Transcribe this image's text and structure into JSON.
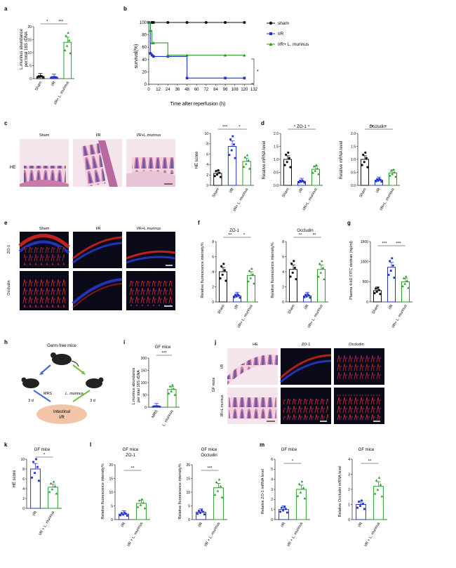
{
  "colors": {
    "sham": "#111111",
    "ir": "#2233cc",
    "lm": "#2a9a2a",
    "he_pink": "#e9a6c2",
    "he_purple": "#7a5fa8",
    "fl_bg": "#0a0a14",
    "fl_red": "#d02020",
    "fl_blue": "#2030b0"
  },
  "panels": {
    "a": "a",
    "b": "b",
    "c": "c",
    "d": "d",
    "e": "e",
    "f": "f",
    "g": "g",
    "h": "h",
    "i": "i",
    "j": "j",
    "k": "k",
    "l": "l",
    "m": "m"
  },
  "sig": {
    "s1": "*",
    "s2": "**",
    "s3": "***"
  },
  "a": {
    "ylabel1": "L.murinus abundance",
    "ylabel2": "per total 16S rDNA",
    "x": [
      "Sham",
      "I/R",
      "I/R+ L. murinus"
    ],
    "ticks": [
      "0",
      "5",
      "10",
      "15",
      "20"
    ],
    "values": [
      0.8,
      0.5,
      14.0
    ]
  },
  "b": {
    "ylabel": "survival(%)",
    "xlabel": "Time after reperfusion (h)",
    "yticks": [
      "0",
      "20",
      "40",
      "60",
      "80",
      "100"
    ],
    "xticks": [
      "0",
      "12",
      "24",
      "36",
      "48",
      "60",
      "72",
      "84",
      "96",
      "108",
      "120",
      "132"
    ],
    "legend": [
      "sham",
      "I/R",
      "I/R+ L. murinus"
    ],
    "sham": {
      "x": [
        0,
        4,
        6,
        24,
        48,
        72,
        96,
        120
      ],
      "y": [
        100,
        100,
        100,
        100,
        100,
        100,
        100,
        100
      ]
    },
    "ir": {
      "x": [
        0,
        2,
        4,
        6,
        24,
        48,
        96,
        120
      ],
      "y": [
        100,
        50,
        47,
        45,
        45,
        10,
        10,
        10
      ]
    },
    "lm": {
      "x": [
        0,
        2,
        4,
        6,
        24,
        48,
        96,
        120
      ],
      "y": [
        100,
        87,
        67,
        67,
        47,
        47,
        47,
        47
      ]
    }
  },
  "c": {
    "labels": [
      "Sham",
      "I/R",
      "I/R+L.murinus"
    ],
    "row": "HE",
    "ylabel": "HE score",
    "x": [
      "Sham",
      "I/R",
      "I/R+ L. murinus"
    ],
    "ticks": [
      "0",
      "2",
      "4",
      "6",
      "8",
      "10"
    ],
    "values": [
      2.3,
      7.5,
      4.6
    ]
  },
  "d": {
    "title1": "ZO-1",
    "title2": "Occludin",
    "ylabel1": "Relative mRNA level",
    "ylabel2": "Relative mRNA level",
    "x": [
      "Sham",
      "I/R",
      "I/R+L. murinus"
    ],
    "ticks1": [
      "0.0",
      "0.5",
      "1.0",
      "1.5",
      "2.0"
    ],
    "ticks2": [
      "0.0",
      "0.5",
      "1.0",
      "1.5",
      "2.0"
    ],
    "values1": [
      1.0,
      0.15,
      0.62
    ],
    "values2": [
      1.0,
      0.2,
      0.48
    ]
  },
  "e": {
    "labels": [
      "Sham",
      "I/R",
      "I/R+L.murinus"
    ],
    "rows": [
      "ZO-1",
      "Occludin"
    ]
  },
  "f": {
    "title1": "ZO-1",
    "title2": "Occludin",
    "ylabel": "Relative fluorescence intensity%",
    "x": [
      "Sham",
      "I/R",
      "I/R+ L. murinus"
    ],
    "ticks1": [
      "0",
      "2",
      "4",
      "6",
      "8"
    ],
    "ticks2": [
      "0",
      "2",
      "4",
      "6",
      "8"
    ],
    "values1": [
      4.0,
      0.8,
      3.5
    ],
    "values2": [
      4.3,
      0.8,
      4.3
    ]
  },
  "g": {
    "ylabel": "Plasma 4-kD FITC dextran (ng/ml)",
    "x": [
      "Sham",
      "I/R",
      "I/R+ L. murinus"
    ],
    "ticks": [
      "0",
      "500",
      "1000",
      "1500"
    ],
    "values": [
      280,
      860,
      500
    ]
  },
  "h": {
    "title": "Germ-free mice",
    "left": "MRS",
    "right": "L. murinus",
    "d1": "3 d",
    "d2": "3 d",
    "center1": "Intestinal",
    "center2": "I/R"
  },
  "i": {
    "title": "GF mice",
    "ylabel1": "L.murinus abundance",
    "ylabel2": "per total 16S rDNA",
    "x": [
      "MRS",
      "L. murinus"
    ],
    "ticks": [
      "0",
      "50",
      "100",
      "150",
      "200"
    ],
    "values": [
      3,
      72
    ]
  },
  "j": {
    "headers": [
      "HE",
      "ZO-1",
      "Occludin"
    ],
    "side": "GF mice",
    "rows": [
      "I/R",
      "I/R+L.murinus"
    ]
  },
  "k": {
    "title": "GF mice",
    "ylabel": "HE score",
    "x": [
      "I/R",
      "I/R + L. murinus"
    ],
    "ticks": [
      "0",
      "2",
      "4",
      "6",
      "8",
      "10"
    ],
    "values": [
      8.0,
      4.3
    ]
  },
  "l": {
    "title1": "GF mice",
    "sub1": "ZO-1",
    "title2": "GF mice",
    "sub2": "Occludin",
    "ylabel": "Relative fluorescence intensity%",
    "x": [
      "I/R",
      "I/R + L. murinus"
    ],
    "ticks1": [
      "0",
      "5",
      "10",
      "15",
      "20"
    ],
    "ticks2": [
      "0",
      "5",
      "10",
      "15",
      "20"
    ],
    "values1": [
      2.0,
      5.9
    ],
    "values2": [
      2.7,
      11.6
    ]
  },
  "m": {
    "title1": "GF mice",
    "title2": "GF mice",
    "ylabel1": "Relative ZO-1 mRNA level",
    "ylabel2": "Relative Occludin mRNA level",
    "x": [
      "I/R",
      "I/R + L. murinus"
    ],
    "ticks1": [
      "0",
      "1",
      "2",
      "3",
      "4",
      "5",
      "6"
    ],
    "ticks2": [
      "0",
      "1",
      "2",
      "3",
      "4"
    ],
    "values1": [
      1.0,
      3.0
    ],
    "values2": [
      1.0,
      2.2
    ]
  },
  "chart_data": [
    {
      "type": "bar",
      "panel": "a",
      "categories": [
        "Sham",
        "I/R",
        "I/R+ L. murinus"
      ],
      "values": [
        0.8,
        0.5,
        14.0
      ],
      "ylabel": "L.murinus abundance per total 16S rDNA",
      "ylim": [
        0,
        20
      ]
    },
    {
      "type": "line",
      "panel": "b",
      "x": [
        0,
        12,
        24,
        36,
        48,
        60,
        72,
        84,
        96,
        108,
        120,
        132
      ],
      "ylabel": "survival(%)",
      "xlabel": "Time after reperfusion (h)",
      "series": [
        {
          "name": "sham",
          "values": [
            100,
            100,
            100,
            100,
            100,
            100,
            100,
            100,
            100,
            100,
            100,
            100
          ]
        },
        {
          "name": "I/R",
          "values": [
            100,
            45,
            45,
            45,
            10,
            10,
            10,
            10,
            10,
            10,
            10,
            10
          ]
        },
        {
          "name": "I/R+ L. murinus",
          "values": [
            100,
            67,
            47,
            47,
            47,
            47,
            47,
            47,
            47,
            47,
            47,
            47
          ]
        }
      ],
      "ylim": [
        0,
        100
      ]
    },
    {
      "type": "bar",
      "panel": "c",
      "categories": [
        "Sham",
        "I/R",
        "I/R+ L. murinus"
      ],
      "values": [
        2.3,
        7.5,
        4.6
      ],
      "ylabel": "HE score",
      "ylim": [
        0,
        10
      ]
    },
    {
      "type": "bar",
      "panel": "d",
      "title": "ZO-1",
      "categories": [
        "Sham",
        "I/R",
        "I/R+L. murinus"
      ],
      "values": [
        1.0,
        0.15,
        0.62
      ],
      "ylabel": "Relative mRNA level",
      "ylim": [
        0,
        2
      ]
    },
    {
      "type": "bar",
      "panel": "d",
      "title": "Occludin",
      "categories": [
        "Sham",
        "I/R",
        "I/R+L. murinus"
      ],
      "values": [
        1.0,
        0.2,
        0.48
      ],
      "ylabel": "Relative mRNA level",
      "ylim": [
        0,
        2
      ]
    },
    {
      "type": "bar",
      "panel": "f",
      "title": "ZO-1",
      "categories": [
        "Sham",
        "I/R",
        "I/R+ L. murinus"
      ],
      "values": [
        4.0,
        0.8,
        3.5
      ],
      "ylabel": "Relative fluorescence intensity%",
      "ylim": [
        0,
        8
      ]
    },
    {
      "type": "bar",
      "panel": "f",
      "title": "Occludin",
      "categories": [
        "Sham",
        "I/R",
        "I/R+ L. murinus"
      ],
      "values": [
        4.3,
        0.8,
        4.3
      ],
      "ylabel": "Relative fluorescence intensity%",
      "ylim": [
        0,
        8
      ]
    },
    {
      "type": "bar",
      "panel": "g",
      "categories": [
        "Sham",
        "I/R",
        "I/R+ L. murinus"
      ],
      "values": [
        280,
        860,
        500
      ],
      "ylabel": "Plasma 4-kD FITC dextran (ng/ml)",
      "ylim": [
        0,
        1500
      ]
    },
    {
      "type": "bar",
      "panel": "i",
      "title": "GF mice",
      "categories": [
        "MRS",
        "L. murinus"
      ],
      "values": [
        3,
        72
      ],
      "ylabel": "L.murinus abundance per total 16S rDNA",
      "ylim": [
        0,
        200
      ]
    },
    {
      "type": "bar",
      "panel": "k",
      "title": "GF mice",
      "categories": [
        "I/R",
        "I/R + L. murinus"
      ],
      "values": [
        8.0,
        4.3
      ],
      "ylabel": "HE score",
      "ylim": [
        0,
        10
      ]
    },
    {
      "type": "bar",
      "panel": "l",
      "title": "GF mice ZO-1",
      "categories": [
        "I/R",
        "I/R + L. murinus"
      ],
      "values": [
        2.0,
        5.9
      ],
      "ylabel": "Relative fluorescence intensity%",
      "ylim": [
        0,
        20
      ]
    },
    {
      "type": "bar",
      "panel": "l",
      "title": "GF mice Occludin",
      "categories": [
        "I/R",
        "I/R + L. murinus"
      ],
      "values": [
        2.7,
        11.6
      ],
      "ylabel": "Relative fluorescence intensity%",
      "ylim": [
        0,
        20
      ]
    },
    {
      "type": "bar",
      "panel": "m",
      "title": "GF mice",
      "categories": [
        "I/R",
        "I/R + L. murinus"
      ],
      "values": [
        1.0,
        3.0
      ],
      "ylabel": "Relative ZO-1 mRNA level",
      "ylim": [
        0,
        6
      ]
    },
    {
      "type": "bar",
      "panel": "m",
      "title": "GF mice",
      "categories": [
        "I/R",
        "I/R + L. murinus"
      ],
      "values": [
        1.0,
        2.2
      ],
      "ylabel": "Relative Occludin mRNA level",
      "ylim": [
        0,
        4
      ]
    }
  ]
}
